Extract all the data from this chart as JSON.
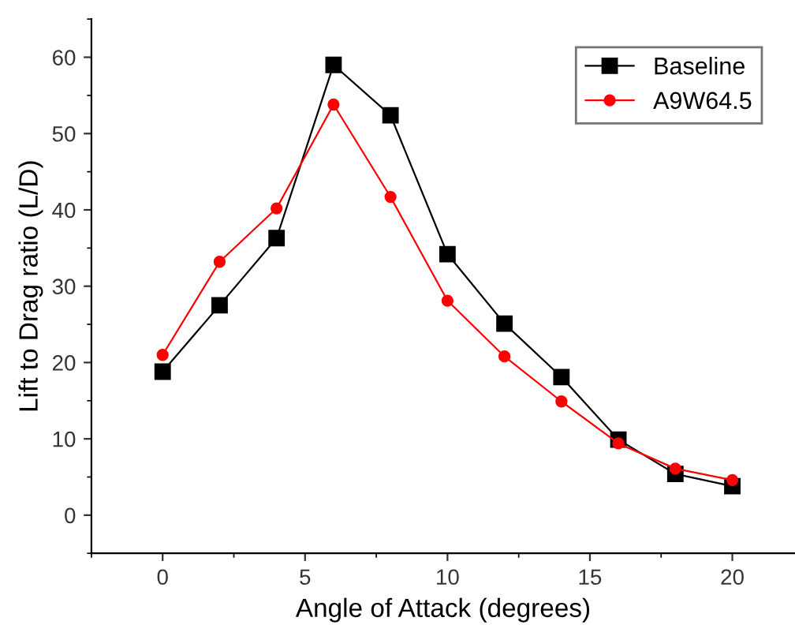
{
  "chart_data": {
    "type": "line",
    "xlabel": "Angle of Attack (degrees)",
    "ylabel": "Lift to Drag ratio (L/D)",
    "x": [
      0,
      2,
      4,
      6,
      8,
      10,
      12,
      14,
      16,
      18,
      20
    ],
    "series": [
      {
        "name": "Baseline",
        "color": "#000000",
        "marker": "square",
        "values": [
          18.8,
          27.5,
          36.3,
          59.0,
          52.4,
          34.2,
          25.1,
          18.1,
          9.9,
          5.4,
          3.8
        ]
      },
      {
        "name": "A9W64.5",
        "color": "#ff0000",
        "marker": "circle",
        "values": [
          21.0,
          33.2,
          40.2,
          53.8,
          41.7,
          28.1,
          20.8,
          14.9,
          9.4,
          6.1,
          4.6
        ]
      }
    ],
    "xlim": [
      -2.5,
      22.2
    ],
    "xticks": [
      0,
      5,
      10,
      15,
      20
    ],
    "ylim": [
      -5,
      65
    ],
    "yticks": [
      0,
      10,
      20,
      30,
      40,
      50,
      60
    ],
    "grid": false,
    "legend": "top right",
    "line_style": "solid"
  }
}
